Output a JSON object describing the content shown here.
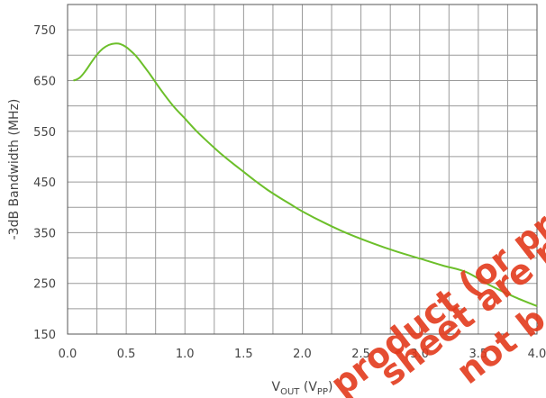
{
  "chart_data": {
    "type": "line",
    "title": "",
    "xlabel": {
      "main": "V",
      "sub1": "OUT",
      "mid": " (V",
      "sub2": "PP",
      "end": ")"
    },
    "ylabel": "-3dB Bandwidth (MHz)",
    "xlim": [
      0.0,
      4.0
    ],
    "ylim": [
      150,
      800
    ],
    "x_ticks": [
      "0.0",
      "0.5",
      "1.0",
      "1.5",
      "2.0",
      "2.5",
      "3.0",
      "3.5",
      "4.0"
    ],
    "y_ticks": [
      "150",
      "250",
      "350",
      "450",
      "550",
      "650",
      "750"
    ],
    "grid": true,
    "series": [
      {
        "color": "#6cbf2a",
        "x": [
          0.05,
          0.1,
          0.15,
          0.2,
          0.25,
          0.3,
          0.35,
          0.4,
          0.45,
          0.5,
          0.55,
          0.6,
          0.7,
          0.8,
          0.9,
          1.0,
          1.1,
          1.2,
          1.3,
          1.4,
          1.5,
          1.6,
          1.7,
          1.8,
          1.9,
          2.0,
          2.2,
          2.4,
          2.6,
          2.8,
          3.0,
          3.2,
          3.4,
          3.6,
          3.8,
          4.0
        ],
        "y": [
          650,
          655,
          668,
          685,
          701,
          713,
          720,
          723,
          722,
          716,
          706,
          694,
          663,
          630,
          600,
          575,
          550,
          528,
          507,
          488,
          470,
          452,
          435,
          420,
          406,
          392,
          368,
          347,
          329,
          313,
          299,
          285,
          272,
          246,
          224,
          205
        ]
      }
    ]
  },
  "watermark": {
    "lines": [
      "product (or produ",
      "sheet are no l",
      "not b"
    ],
    "color": "#e23a1c"
  }
}
